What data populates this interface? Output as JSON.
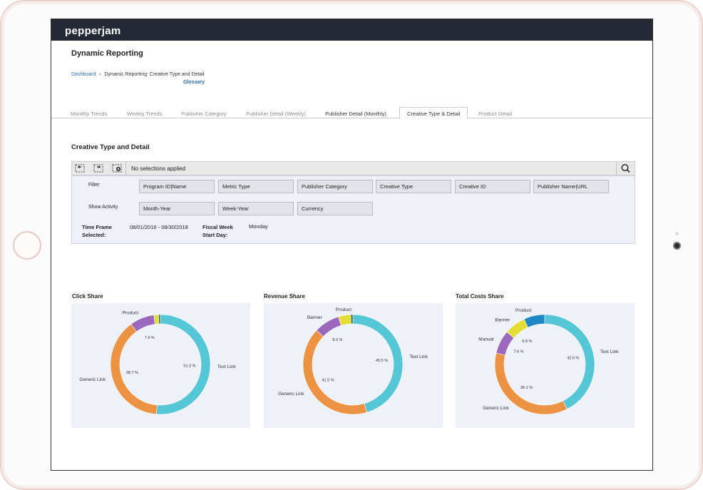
{
  "app": {
    "logo": "pepperjam"
  },
  "page": {
    "title": "Dynamic Reporting",
    "breadcrumb": {
      "home": "Dashboard",
      "separator": "›",
      "current": "Dynamic Reporting: Creative Type and Detail"
    },
    "glossary": "Glossary"
  },
  "tabs": [
    {
      "label": "Monthly Trends"
    },
    {
      "label": "Weekly Trends"
    },
    {
      "label": "Publisher Category"
    },
    {
      "label": "Publisher Detail (Weekly)"
    },
    {
      "label": "Publisher Detail (Monthly)"
    },
    {
      "label": "Creative Type & Detail"
    },
    {
      "label": "Product Detail"
    }
  ],
  "active_tab": "Creative Type & Detail",
  "section": {
    "title": "Creative Type and Detail"
  },
  "selections": {
    "text": "No selections applied"
  },
  "filter": {
    "filter_label": "Filter",
    "filter_fields": [
      "Program ID|Name",
      "Metric Type",
      "Publisher Category",
      "Creative Type",
      "Creative ID",
      "Publisher Name|URL"
    ],
    "activity_label": "Show Activity",
    "activity_fields": [
      "Month-Year",
      "Week-Year",
      "Currency"
    ],
    "timeframe_label_1": "Time Frame",
    "timeframe_label_2": "Selected:",
    "timeframe_value": "08/01/2016 - 08/30/2018",
    "fiscal_label_1": "Fiscal Week",
    "fiscal_label_2": "Start Day:",
    "fiscal_value": "Monday"
  },
  "colors": {
    "Text Link": "#55c6d6",
    "Generic Link": "#ec9243",
    "Product": "#9a68bd",
    "Banner": "#e4dd35",
    "Manual": "#9a68bd",
    "Product_total": "#1f87c3",
    "other": "#3a6d4a"
  },
  "chart_data": [
    {
      "type": "pie",
      "title": "Click Share",
      "slices": [
        {
          "label": "Text Link",
          "value": 51.3,
          "value_label": "51.3 %",
          "color": "#55c6d6"
        },
        {
          "label": "Generic Link",
          "value": 38.7,
          "value_label": "38.7 %",
          "color": "#ec9243"
        },
        {
          "label": "Product",
          "value": 7.9,
          "value_label": "7.9 %",
          "color": "#9a68bd"
        },
        {
          "label": "",
          "value": 1.5,
          "value_label": "",
          "color": "#e4dd35"
        },
        {
          "label": "",
          "value": 0.6,
          "value_label": "",
          "color": "#3a6d4a"
        }
      ]
    },
    {
      "type": "pie",
      "title": "Revenue Share",
      "slices": [
        {
          "label": "Text Link",
          "value": 45.5,
          "value_label": "45.5 %",
          "color": "#55c6d6"
        },
        {
          "label": "Generic Link",
          "value": 41.5,
          "value_label": "41.5 %",
          "color": "#ec9243"
        },
        {
          "label": "Banner",
          "value": 8.3,
          "value_label": "8.3 %",
          "color": "#9a68bd"
        },
        {
          "label": "Product",
          "value": 4.0,
          "value_label": "",
          "color": "#e4dd35"
        },
        {
          "label": "",
          "value": 0.7,
          "value_label": "",
          "color": "#3a6d4a"
        }
      ]
    },
    {
      "type": "pie",
      "title": "Total Costs Share",
      "slices": [
        {
          "label": "Text Link",
          "value": 42.6,
          "value_label": "42.6 %",
          "color": "#55c6d6"
        },
        {
          "label": "Generic Link",
          "value": 36.1,
          "value_label": "36.1 %",
          "color": "#ec9243"
        },
        {
          "label": "Manual",
          "value": 7.6,
          "value_label": "7.6 %",
          "color": "#9a68bd"
        },
        {
          "label": "Banner",
          "value": 6.9,
          "value_label": "6.9 %",
          "color": "#e4dd35"
        },
        {
          "label": "Product",
          "value": 6.8,
          "value_label": "",
          "color": "#1f87c3"
        }
      ]
    }
  ]
}
